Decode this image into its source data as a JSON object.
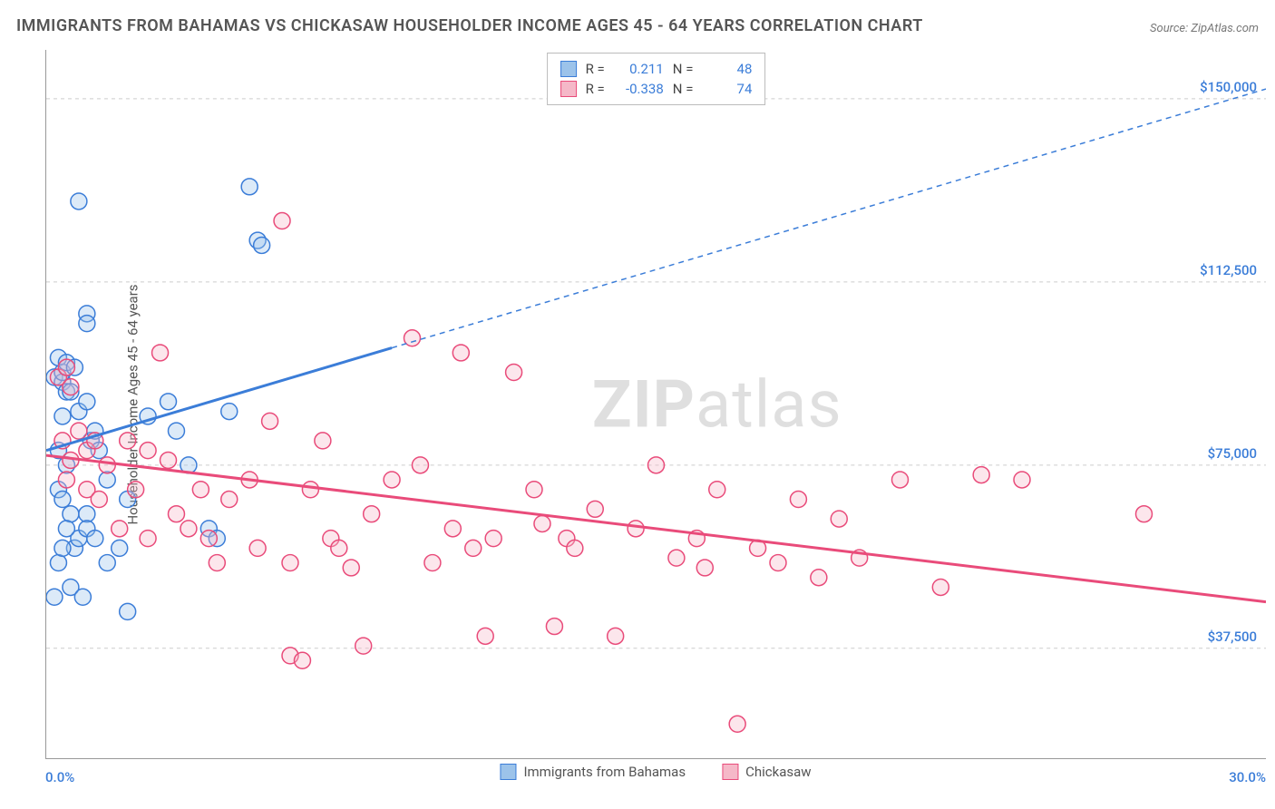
{
  "title": "IMMIGRANTS FROM BAHAMAS VS CHICKASAW HOUSEHOLDER INCOME AGES 45 - 64 YEARS CORRELATION CHART",
  "source": "Source: ZipAtlas.com",
  "ylabel": "Householder Income Ages 45 - 64 years",
  "watermark_bold": "ZIP",
  "watermark_rest": "atlas",
  "chart": {
    "type": "scatter",
    "background_color": "#ffffff",
    "grid_color": "#cccccc",
    "axis_color": "#999999",
    "x_axis": {
      "min": 0.0,
      "max": 30.0,
      "min_label": "0.0%",
      "max_label": "30.0%",
      "tick_positions_pct": [
        0,
        14.3,
        28.6,
        42.9,
        57.1,
        71.4,
        85.7,
        100
      ]
    },
    "y_axis": {
      "min": 15000,
      "max": 160000,
      "ticks": [
        {
          "value": 37500,
          "label": "$37,500"
        },
        {
          "value": 75000,
          "label": "$75,000"
        },
        {
          "value": 112500,
          "label": "$112,500"
        },
        {
          "value": 150000,
          "label": "$150,000"
        }
      ],
      "label_color": "#3b7dd8"
    },
    "series": [
      {
        "id": "bahamas",
        "label": "Immigrants from Bahamas",
        "fill_color": "#9cc3ea",
        "stroke_color": "#3b7dd8",
        "r_value": "0.211",
        "n_value": "48",
        "trend": {
          "x1": 0,
          "y1": 78000,
          "solid_x2": 8.5,
          "solid_y2": 99000,
          "dash_x2": 30,
          "dash_y2": 152000
        },
        "marker_radius": 9,
        "points": [
          {
            "x": 0.2,
            "y": 93000
          },
          {
            "x": 0.3,
            "y": 97000
          },
          {
            "x": 0.4,
            "y": 92000
          },
          {
            "x": 0.4,
            "y": 94000
          },
          {
            "x": 0.5,
            "y": 96000
          },
          {
            "x": 0.5,
            "y": 90000
          },
          {
            "x": 0.7,
            "y": 95000
          },
          {
            "x": 0.8,
            "y": 129000
          },
          {
            "x": 1.0,
            "y": 106000
          },
          {
            "x": 1.0,
            "y": 104000
          },
          {
            "x": 1.1,
            "y": 80000
          },
          {
            "x": 1.2,
            "y": 82000
          },
          {
            "x": 1.3,
            "y": 78000
          },
          {
            "x": 0.3,
            "y": 70000
          },
          {
            "x": 0.4,
            "y": 85000
          },
          {
            "x": 0.4,
            "y": 68000
          },
          {
            "x": 0.5,
            "y": 75000
          },
          {
            "x": 0.6,
            "y": 65000
          },
          {
            "x": 0.7,
            "y": 58000
          },
          {
            "x": 0.8,
            "y": 60000
          },
          {
            "x": 0.3,
            "y": 55000
          },
          {
            "x": 0.6,
            "y": 50000
          },
          {
            "x": 0.9,
            "y": 48000
          },
          {
            "x": 1.0,
            "y": 65000
          },
          {
            "x": 1.0,
            "y": 62000
          },
          {
            "x": 1.2,
            "y": 60000
          },
          {
            "x": 1.5,
            "y": 55000
          },
          {
            "x": 1.8,
            "y": 58000
          },
          {
            "x": 2.0,
            "y": 68000
          },
          {
            "x": 2.5,
            "y": 85000
          },
          {
            "x": 3.0,
            "y": 88000
          },
          {
            "x": 3.2,
            "y": 82000
          },
          {
            "x": 3.5,
            "y": 75000
          },
          {
            "x": 4.0,
            "y": 62000
          },
          {
            "x": 4.2,
            "y": 60000
          },
          {
            "x": 4.5,
            "y": 86000
          },
          {
            "x": 5.0,
            "y": 132000
          },
          {
            "x": 5.2,
            "y": 121000
          },
          {
            "x": 5.3,
            "y": 120000
          },
          {
            "x": 2.0,
            "y": 45000
          },
          {
            "x": 0.2,
            "y": 48000
          },
          {
            "x": 0.3,
            "y": 78000
          },
          {
            "x": 0.6,
            "y": 90000
          },
          {
            "x": 0.8,
            "y": 86000
          },
          {
            "x": 1.0,
            "y": 88000
          },
          {
            "x": 1.5,
            "y": 72000
          },
          {
            "x": 0.5,
            "y": 62000
          },
          {
            "x": 0.4,
            "y": 58000
          }
        ]
      },
      {
        "id": "chickasaw",
        "label": "Chickasaw",
        "fill_color": "#f5b8c8",
        "stroke_color": "#e94b7a",
        "r_value": "-0.338",
        "n_value": "74",
        "trend": {
          "x1": 0,
          "y1": 77000,
          "solid_x2": 30,
          "solid_y2": 47000,
          "dash_x2": 30,
          "dash_y2": 47000
        },
        "marker_radius": 9,
        "points": [
          {
            "x": 0.3,
            "y": 93000
          },
          {
            "x": 0.5,
            "y": 95000
          },
          {
            "x": 0.6,
            "y": 91000
          },
          {
            "x": 0.8,
            "y": 82000
          },
          {
            "x": 1.0,
            "y": 78000
          },
          {
            "x": 1.2,
            "y": 80000
          },
          {
            "x": 1.5,
            "y": 75000
          },
          {
            "x": 2.0,
            "y": 80000
          },
          {
            "x": 2.5,
            "y": 78000
          },
          {
            "x": 2.8,
            "y": 98000
          },
          {
            "x": 3.0,
            "y": 76000
          },
          {
            "x": 3.2,
            "y": 65000
          },
          {
            "x": 3.5,
            "y": 62000
          },
          {
            "x": 3.8,
            "y": 70000
          },
          {
            "x": 4.0,
            "y": 60000
          },
          {
            "x": 4.2,
            "y": 55000
          },
          {
            "x": 4.5,
            "y": 68000
          },
          {
            "x": 5.0,
            "y": 72000
          },
          {
            "x": 5.2,
            "y": 58000
          },
          {
            "x": 5.5,
            "y": 84000
          },
          {
            "x": 5.8,
            "y": 125000
          },
          {
            "x": 6.0,
            "y": 55000
          },
          {
            "x": 6.0,
            "y": 36000
          },
          {
            "x": 6.3,
            "y": 35000
          },
          {
            "x": 6.5,
            "y": 70000
          },
          {
            "x": 6.8,
            "y": 80000
          },
          {
            "x": 7.0,
            "y": 60000
          },
          {
            "x": 7.2,
            "y": 58000
          },
          {
            "x": 7.5,
            "y": 54000
          },
          {
            "x": 7.8,
            "y": 38000
          },
          {
            "x": 8.0,
            "y": 65000
          },
          {
            "x": 8.5,
            "y": 72000
          },
          {
            "x": 9.0,
            "y": 101000
          },
          {
            "x": 9.2,
            "y": 75000
          },
          {
            "x": 9.5,
            "y": 55000
          },
          {
            "x": 10.0,
            "y": 62000
          },
          {
            "x": 10.2,
            "y": 98000
          },
          {
            "x": 10.5,
            "y": 58000
          },
          {
            "x": 10.8,
            "y": 40000
          },
          {
            "x": 11.0,
            "y": 60000
          },
          {
            "x": 11.5,
            "y": 94000
          },
          {
            "x": 12.0,
            "y": 70000
          },
          {
            "x": 12.2,
            "y": 63000
          },
          {
            "x": 12.5,
            "y": 42000
          },
          {
            "x": 12.8,
            "y": 60000
          },
          {
            "x": 13.0,
            "y": 58000
          },
          {
            "x": 13.5,
            "y": 66000
          },
          {
            "x": 14.0,
            "y": 40000
          },
          {
            "x": 14.5,
            "y": 62000
          },
          {
            "x": 15.0,
            "y": 75000
          },
          {
            "x": 15.5,
            "y": 56000
          },
          {
            "x": 16.0,
            "y": 60000
          },
          {
            "x": 16.2,
            "y": 54000
          },
          {
            "x": 16.5,
            "y": 70000
          },
          {
            "x": 17.0,
            "y": 22000
          },
          {
            "x": 17.5,
            "y": 58000
          },
          {
            "x": 18.0,
            "y": 55000
          },
          {
            "x": 18.5,
            "y": 68000
          },
          {
            "x": 19.0,
            "y": 52000
          },
          {
            "x": 19.5,
            "y": 64000
          },
          {
            "x": 20.0,
            "y": 56000
          },
          {
            "x": 21.0,
            "y": 72000
          },
          {
            "x": 22.0,
            "y": 50000
          },
          {
            "x": 23.0,
            "y": 73000
          },
          {
            "x": 24.0,
            "y": 72000
          },
          {
            "x": 27.0,
            "y": 65000
          },
          {
            "x": 1.0,
            "y": 70000
          },
          {
            "x": 1.3,
            "y": 68000
          },
          {
            "x": 1.8,
            "y": 62000
          },
          {
            "x": 2.2,
            "y": 70000
          },
          {
            "x": 0.4,
            "y": 80000
          },
          {
            "x": 0.6,
            "y": 76000
          },
          {
            "x": 0.5,
            "y": 72000
          },
          {
            "x": 2.5,
            "y": 60000
          }
        ]
      }
    ],
    "legend": {
      "stats_labels": {
        "r": "R =",
        "n": "N ="
      }
    }
  }
}
